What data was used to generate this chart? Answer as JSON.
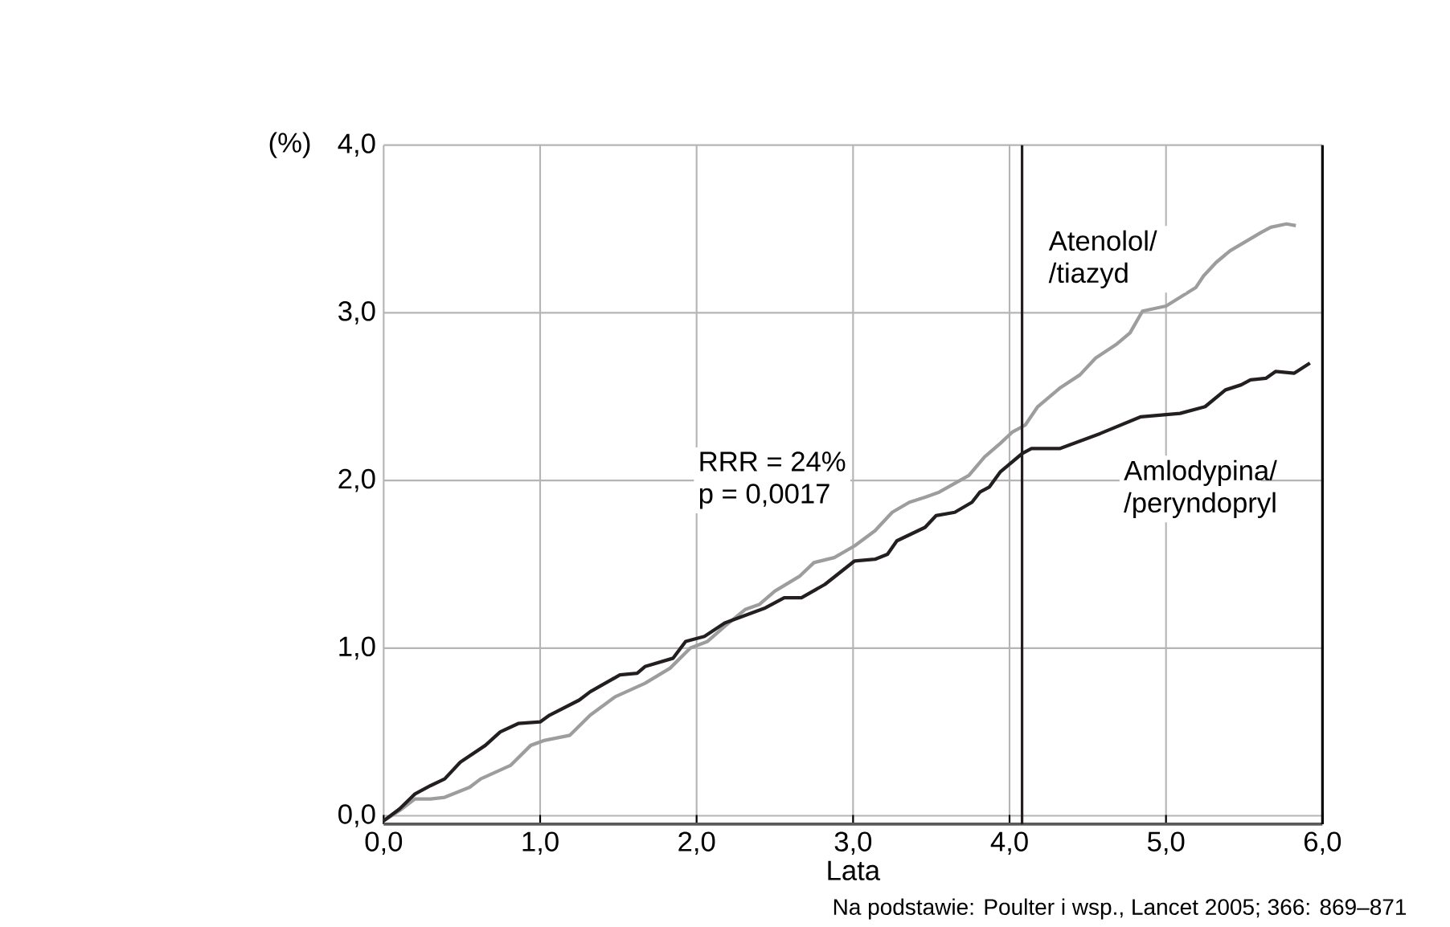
{
  "chart_data": {
    "type": "line",
    "xlabel": "Lata",
    "ylabel": "(%)",
    "xlim": [
      0,
      6
    ],
    "ylim": [
      -0.05,
      4
    ],
    "xticks": [
      {
        "value": 0,
        "label": "0,0"
      },
      {
        "value": 1,
        "label": "1,0"
      },
      {
        "value": 2,
        "label": "2,0"
      },
      {
        "value": 3,
        "label": "3,0"
      },
      {
        "value": 4,
        "label": "4,0"
      },
      {
        "value": 5,
        "label": "5,0"
      },
      {
        "value": 6,
        "label": "6,0"
      }
    ],
    "yticks": [
      {
        "value": 0,
        "label": "0,0"
      },
      {
        "value": 1,
        "label": "1,0"
      },
      {
        "value": 2,
        "label": "2,0"
      },
      {
        "value": 3,
        "label": "3,0"
      },
      {
        "value": 4,
        "label": "4,0"
      }
    ],
    "grid": true,
    "marker": "none",
    "line_style": "solid",
    "ref_lines": [
      {
        "axis": "x",
        "value": 4.08,
        "color": "#231f20"
      }
    ],
    "annotations": [
      "RRR = 24%",
      "p = 0,0017",
      "Na podstawie: Poulter i wsp., Lancet 2005; 366: 869–871"
    ],
    "series": [
      {
        "name": "Atenolol/ /tiazyd",
        "color": "#9d9d9d",
        "x": [
          0,
          0.1,
          0.2,
          0.3,
          0.39,
          0.55,
          0.62,
          0.81,
          0.94,
          1.03,
          1.19,
          1.32,
          1.48,
          1.67,
          1.83,
          1.96,
          2.07,
          2.18,
          2.31,
          2.4,
          2.5,
          2.66,
          2.75,
          2.88,
          3.01,
          3.14,
          3.25,
          3.36,
          3.46,
          3.55,
          3.74,
          3.84,
          3.94,
          4.02,
          4.1,
          4.18,
          4.32,
          4.45,
          4.55,
          4.68,
          4.77,
          4.85,
          5.0,
          5.19,
          5.24,
          5.32,
          5.41,
          5.61,
          5.67,
          5.77,
          5.83
        ],
        "values": [
          -0.03,
          0.03,
          0.1,
          0.1,
          0.11,
          0.17,
          0.22,
          0.3,
          0.42,
          0.45,
          0.48,
          0.6,
          0.71,
          0.79,
          0.88,
          1.0,
          1.04,
          1.13,
          1.23,
          1.26,
          1.34,
          1.43,
          1.51,
          1.54,
          1.61,
          1.7,
          1.81,
          1.87,
          1.9,
          1.93,
          2.03,
          2.14,
          2.22,
          2.29,
          2.33,
          2.44,
          2.55,
          2.63,
          2.73,
          2.81,
          2.88,
          3.01,
          3.04,
          3.15,
          3.22,
          3.3,
          3.37,
          3.48,
          3.51,
          3.53,
          3.52
        ]
      },
      {
        "name": "Amlodypina/ /peryndopryl",
        "color": "#231f20",
        "x": [
          0,
          0.1,
          0.2,
          0.3,
          0.39,
          0.49,
          0.65,
          0.745,
          0.86,
          1.0,
          1.06,
          1.25,
          1.32,
          1.51,
          1.62,
          1.67,
          1.85,
          1.93,
          2.05,
          2.18,
          2.44,
          2.56,
          2.67,
          2.82,
          3.01,
          3.14,
          3.22,
          3.28,
          3.46,
          3.53,
          3.65,
          3.76,
          3.81,
          3.87,
          3.94,
          4.08,
          4.14,
          4.32,
          4.58,
          4.84,
          5.09,
          5.25,
          5.38,
          5.48,
          5.54,
          5.64,
          5.7,
          5.82,
          5.92
        ],
        "values": [
          -0.03,
          0.04,
          0.13,
          0.18,
          0.22,
          0.32,
          0.42,
          0.5,
          0.55,
          0.56,
          0.6,
          0.69,
          0.74,
          0.84,
          0.85,
          0.89,
          0.94,
          1.04,
          1.07,
          1.15,
          1.24,
          1.3,
          1.3,
          1.38,
          1.52,
          1.53,
          1.56,
          1.64,
          1.72,
          1.79,
          1.81,
          1.87,
          1.93,
          1.96,
          2.05,
          2.16,
          2.19,
          2.19,
          2.28,
          2.38,
          2.4,
          2.44,
          2.54,
          2.57,
          2.6,
          2.61,
          2.65,
          2.64,
          2.7
        ]
      }
    ]
  }
}
